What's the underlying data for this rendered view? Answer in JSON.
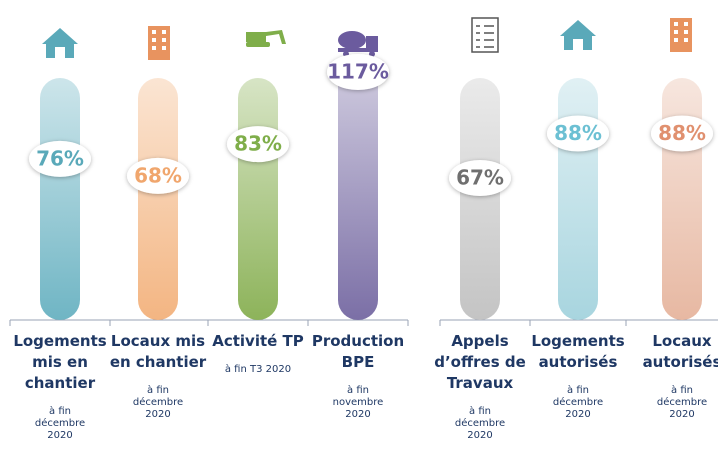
{
  "chart_data": {
    "type": "bar",
    "categories": [
      "Logements mis en chantier",
      "Locaux mis en chantier",
      "Activité TP",
      "Production BPE",
      "Appels d’offres de Travaux",
      "Logements autorisés",
      "Locaux autorisés"
    ],
    "notes": [
      "à fin décembre 2020",
      "à fin décembre 2020",
      "à fin T3 2020",
      "à fin novembre 2020",
      "à fin décembre 2020",
      "à fin décembre 2020",
      "à fin décembre 2020"
    ],
    "values": [
      76,
      68,
      83,
      117,
      67,
      88,
      88
    ],
    "value_labels": [
      "76%",
      "68%",
      "83%",
      "117%",
      "67%",
      "88%",
      "88%"
    ],
    "colors": [
      "#6fb5c4",
      "#f3b582",
      "#8db35a",
      "#7b6fa6",
      "#c4c4c4",
      "#a8d5df",
      "#e7b8a2"
    ],
    "label_colors": [
      "#5aa9b9",
      "#f0a66d",
      "#7fae4a",
      "#6b5b9e",
      "#6f6f6f",
      "#6cc0d3",
      "#e0906f"
    ]
  }
}
